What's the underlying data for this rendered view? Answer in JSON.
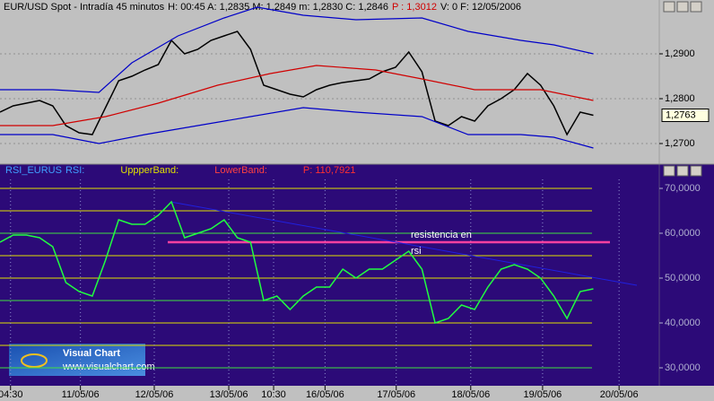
{
  "chart_data": [
    {
      "type": "line",
      "title": "EUR/USD Spot - Intradía 45 minutos",
      "stats": "H: 00:45  A: 1,2835  M: 1,2849  m: 1,2830  C: 1,2846",
      "stat_p": "P : 1,3012",
      "stats_end": "V: 0   F: 12/05/2006",
      "last_label": "1,2763",
      "xlim": [
        0,
        100
      ],
      "ylim": [
        1.2656,
        1.302
      ],
      "yticks": [
        {
          "value": 1.27,
          "label": "1,2700"
        },
        {
          "value": 1.28,
          "label": "1,2800"
        },
        {
          "value": 1.29,
          "label": "1,2900"
        }
      ],
      "grid": true,
      "series": [
        {
          "name": "Close",
          "color": "#000000",
          "x": [
            0,
            2,
            4,
            6,
            8,
            10,
            12,
            14,
            16,
            18,
            20,
            22,
            24,
            26,
            28,
            30,
            32,
            34,
            36,
            38,
            40,
            42,
            44,
            46,
            48,
            50,
            52,
            54,
            56,
            58,
            60,
            62,
            64,
            66,
            68,
            70,
            72,
            74,
            76,
            78,
            80,
            82,
            84,
            86,
            88,
            90
          ],
          "values": [
            1.277,
            1.2784,
            1.279,
            1.2796,
            1.2784,
            1.274,
            1.2724,
            1.272,
            1.278,
            1.284,
            1.285,
            1.2864,
            1.2876,
            1.293,
            1.29,
            1.291,
            1.293,
            1.294,
            1.295,
            1.291,
            1.283,
            1.282,
            1.281,
            1.2804,
            1.282,
            1.283,
            1.2836,
            1.284,
            1.2844,
            1.286,
            1.287,
            1.2904,
            1.286,
            1.275,
            1.274,
            1.276,
            1.275,
            1.2784,
            1.28,
            1.282,
            1.2856,
            1.283,
            1.2784,
            1.272,
            1.277,
            1.2763
          ]
        },
        {
          "name": "Moving average",
          "color": "#d00000",
          "x": [
            0,
            8,
            16,
            24,
            33,
            41,
            48,
            57,
            64,
            72,
            82,
            90
          ],
          "values": [
            1.274,
            1.274,
            1.276,
            1.279,
            1.283,
            1.2856,
            1.2874,
            1.2864,
            1.2844,
            1.282,
            1.282,
            1.2796
          ]
        },
        {
          "name": "Upper band",
          "color": "#0000c8",
          "x": [
            0,
            8,
            15,
            20,
            27,
            34,
            39,
            46,
            54,
            64,
            71,
            79,
            84,
            90
          ],
          "values": [
            1.282,
            1.282,
            1.2814,
            1.288,
            1.294,
            1.298,
            1.3004,
            1.2986,
            1.2976,
            1.298,
            1.295,
            1.293,
            1.292,
            1.29
          ]
        },
        {
          "name": "Lower band",
          "color": "#0000c8",
          "x": [
            0,
            8,
            15,
            22,
            30,
            38,
            46,
            54,
            64,
            71,
            79,
            84,
            90
          ],
          "values": [
            1.272,
            1.272,
            1.27,
            1.272,
            1.274,
            1.276,
            1.278,
            1.277,
            1.276,
            1.272,
            1.272,
            1.2714,
            1.269
          ]
        }
      ]
    },
    {
      "type": "line",
      "title": "RSI_EURUS",
      "label_rsi": "RSI:",
      "label_upper": "UppperBand:",
      "label_lower": "LowerBand:",
      "stat_p": "P: 110,7921",
      "annotation": [
        "resistencia en",
        "rsi"
      ],
      "resistance_level": 58,
      "xlim": [
        0,
        100
      ],
      "ylim": [
        26,
        74
      ],
      "yticks": [
        {
          "value": 30,
          "label": "30,0000"
        },
        {
          "value": 40,
          "label": "40,0000"
        },
        {
          "value": 50,
          "label": "50,0000"
        },
        {
          "value": 60,
          "label": "60,0000"
        },
        {
          "value": 70,
          "label": "70,0000"
        }
      ],
      "hlines": [
        30,
        35,
        40,
        45,
        50,
        55,
        60,
        65,
        70
      ],
      "xticks": [
        {
          "value": 1.6,
          "label": "04:30"
        },
        {
          "value": 12.2,
          "label": "11/05/06"
        },
        {
          "value": 23.4,
          "label": "12/05/06"
        },
        {
          "value": 34.7,
          "label": "13/05/06"
        },
        {
          "value": 41.5,
          "label": "10:30"
        },
        {
          "value": 49.3,
          "label": "16/05/06"
        },
        {
          "value": 60.1,
          "label": "17/05/06"
        },
        {
          "value": 71.4,
          "label": "18/05/06"
        },
        {
          "value": 82.3,
          "label": "19/05/06"
        },
        {
          "value": 93.9,
          "label": "20/05/06"
        }
      ],
      "series": [
        {
          "name": "RSI",
          "color": "#20ff40",
          "x": [
            0,
            2,
            4,
            6,
            8,
            10,
            12,
            14,
            16,
            18,
            20,
            22,
            24,
            26,
            28,
            30,
            32,
            34,
            36,
            38,
            40,
            42,
            44,
            46,
            48,
            50,
            52,
            54,
            56,
            58,
            60,
            62,
            64,
            66,
            68,
            70,
            72,
            74,
            76,
            78,
            80,
            82,
            84,
            86,
            88,
            90
          ],
          "values": [
            58,
            59.6,
            59.6,
            59,
            57,
            49,
            47,
            46,
            54,
            63,
            62,
            62,
            64,
            67,
            59,
            60,
            61,
            63,
            59,
            58,
            45,
            46,
            43,
            46,
            48,
            48,
            52,
            50,
            52,
            52,
            54,
            56,
            52,
            40,
            41,
            44,
            43,
            48,
            52,
            53,
            52,
            50,
            46,
            41,
            47,
            47.6
          ]
        }
      ]
    },
    {
      "logo": {
        "name": "Visual Chart",
        "url": "www.visualchart.com"
      }
    }
  ]
}
